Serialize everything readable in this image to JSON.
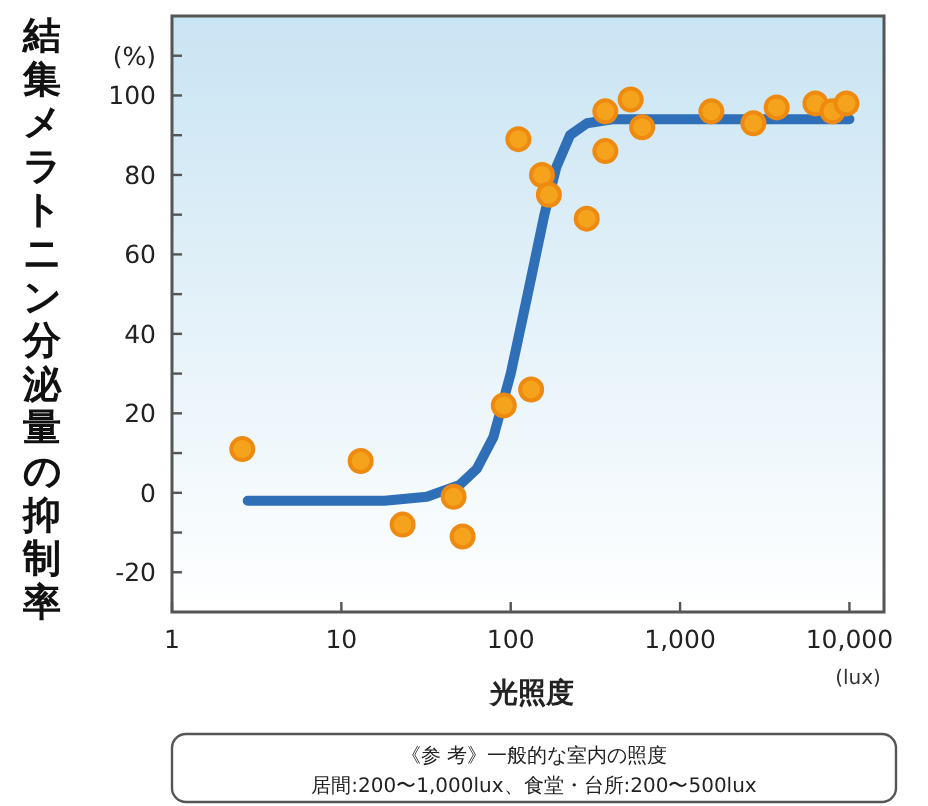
{
  "chart_data": {
    "type": "scatter",
    "ylabel": "結集メラトニン分泌量の抑制率",
    "xlabel": "光照度",
    "log": "x",
    "xlim": [
      1,
      16000
    ],
    "ylim": [
      -30,
      120
    ],
    "xticks": [
      1,
      10,
      100,
      {
        "value": 1000,
        "label": "1,000"
      },
      {
        "value": 10000,
        "label": "10,000"
      }
    ],
    "yticks": [
      -20,
      {
        "value": -10,
        "label": null
      },
      0,
      {
        "value": 10,
        "label": null
      },
      20,
      {
        "value": 30,
        "label": null
      },
      40,
      {
        "value": 50,
        "label": null
      },
      60,
      {
        "value": 70,
        "label": null
      },
      80,
      {
        "value": 90,
        "label": null
      },
      100,
      {
        "value": 110,
        "label": "(%)"
      }
    ],
    "grid": false,
    "marker": "circle",
    "annotations": [
      "(lux)",
      "《参 考》一般的な室内の照度",
      "居間:200〜1,000lux、食堂・台所:200〜500lux"
    ],
    "series": [
      {
        "type": "line",
        "color": "#2f6fb8",
        "line_style": "solid",
        "marker": "none",
        "x": [
          2.8,
          10,
          18,
          32,
          50,
          63,
          79,
          100,
          126,
          158,
          186,
          224,
          282,
          398,
          1000,
          10000
        ],
        "values": [
          -2,
          -2,
          -2,
          -1,
          2,
          6,
          14,
          30,
          50,
          70,
          82,
          90,
          93,
          94,
          94,
          94
        ]
      },
      {
        "color": "#f5a21c",
        "x": [
          2.6,
          13,
          23,
          46,
          52,
          91,
          111,
          132,
          153,
          168,
          281,
          362,
          362,
          511,
          597,
          1530,
          2710,
          3720,
          6300,
          7940,
          9600
        ],
        "values": [
          11,
          8,
          -8,
          -1,
          -11,
          22,
          89,
          26,
          80,
          75,
          69,
          96,
          86,
          99,
          92,
          96,
          93,
          97,
          98,
          96,
          98
        ]
      }
    ]
  }
}
